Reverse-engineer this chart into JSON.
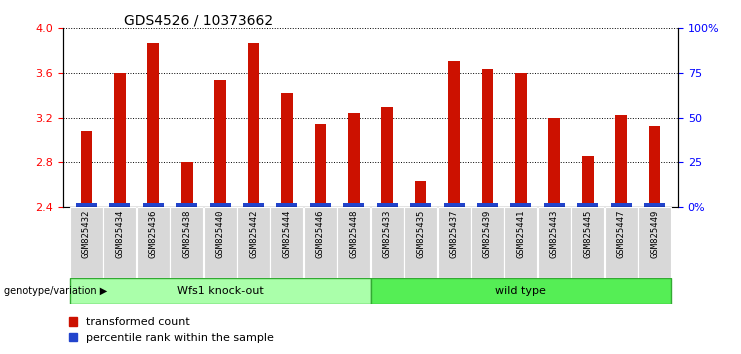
{
  "title": "GDS4526 / 10373662",
  "samples": [
    "GSM825432",
    "GSM825434",
    "GSM825436",
    "GSM825438",
    "GSM825440",
    "GSM825442",
    "GSM825444",
    "GSM825446",
    "GSM825448",
    "GSM825433",
    "GSM825435",
    "GSM825437",
    "GSM825439",
    "GSM825441",
    "GSM825443",
    "GSM825445",
    "GSM825447",
    "GSM825449"
  ],
  "red_values": [
    3.08,
    3.6,
    3.87,
    2.8,
    3.54,
    3.87,
    3.42,
    3.14,
    3.24,
    3.3,
    2.63,
    3.71,
    3.64,
    3.6,
    3.2,
    2.86,
    3.22,
    3.13
  ],
  "blue_values_pct": [
    0.35,
    0.35,
    0.5,
    0.35,
    0.5,
    0.42,
    0.42,
    0.42,
    0.42,
    0.42,
    0.35,
    0.5,
    0.5,
    0.42,
    0.35,
    0.35,
    0.35,
    0.35
  ],
  "bar_base": 2.4,
  "group1_label": "Wfs1 knock-out",
  "group2_label": "wild type",
  "group1_color": "#aaffaa",
  "group2_color": "#55ee55",
  "ylim": [
    2.4,
    4.0
  ],
  "yticks": [
    2.4,
    2.8,
    3.2,
    3.6,
    4.0
  ],
  "right_ytick_labels": [
    "0%",
    "25",
    "50",
    "75",
    "100%"
  ],
  "red_color": "#cc1100",
  "blue_color": "#2244cc",
  "bar_width": 0.35,
  "legend_red": "transformed count",
  "legend_blue": "percentile rank within the sample",
  "genotype_label": "genotype/variation",
  "title_fontsize": 10,
  "tick_fontsize": 8,
  "label_fontsize": 6.5
}
